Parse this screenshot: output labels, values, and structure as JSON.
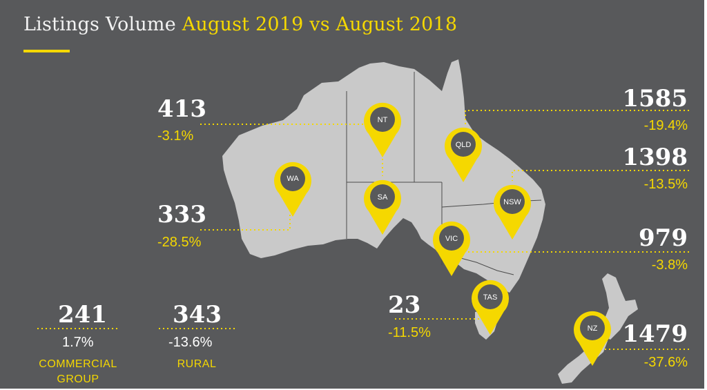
{
  "title": {
    "main": "Listings Volume",
    "highlight": "August 2019 vs August 2018"
  },
  "colors": {
    "background": "#58595b",
    "land": "#c9c9c9",
    "accent": "#f5d800",
    "pin_fill": "#f5d800",
    "pin_core": "#58595b"
  },
  "pins": {
    "wa": "WA",
    "nt": "NT",
    "sa": "SA",
    "qld": "QLD",
    "nsw": "NSW",
    "vic": "VIC",
    "tas": "TAS",
    "nz": "NZ"
  },
  "regions": {
    "nt": {
      "count": "413",
      "change": "-3.1%"
    },
    "wa": {
      "count": "333",
      "change": "-28.5%"
    },
    "qld": {
      "count": "1585",
      "change": "-19.4%"
    },
    "nsw": {
      "count": "1398",
      "change": "-13.5%"
    },
    "vic": {
      "count": "979",
      "change": "-3.8%"
    },
    "tas": {
      "count": "23",
      "change": "-11.5%"
    },
    "nz": {
      "count": "1479",
      "change": "-37.6%"
    }
  },
  "groups": {
    "commercial": {
      "count": "241",
      "change": "1.7%",
      "label_line1": "COMMERCIAL",
      "label_line2": "GROUP"
    },
    "rural": {
      "count": "343",
      "change": "-13.6%",
      "label": "RURAL"
    }
  }
}
